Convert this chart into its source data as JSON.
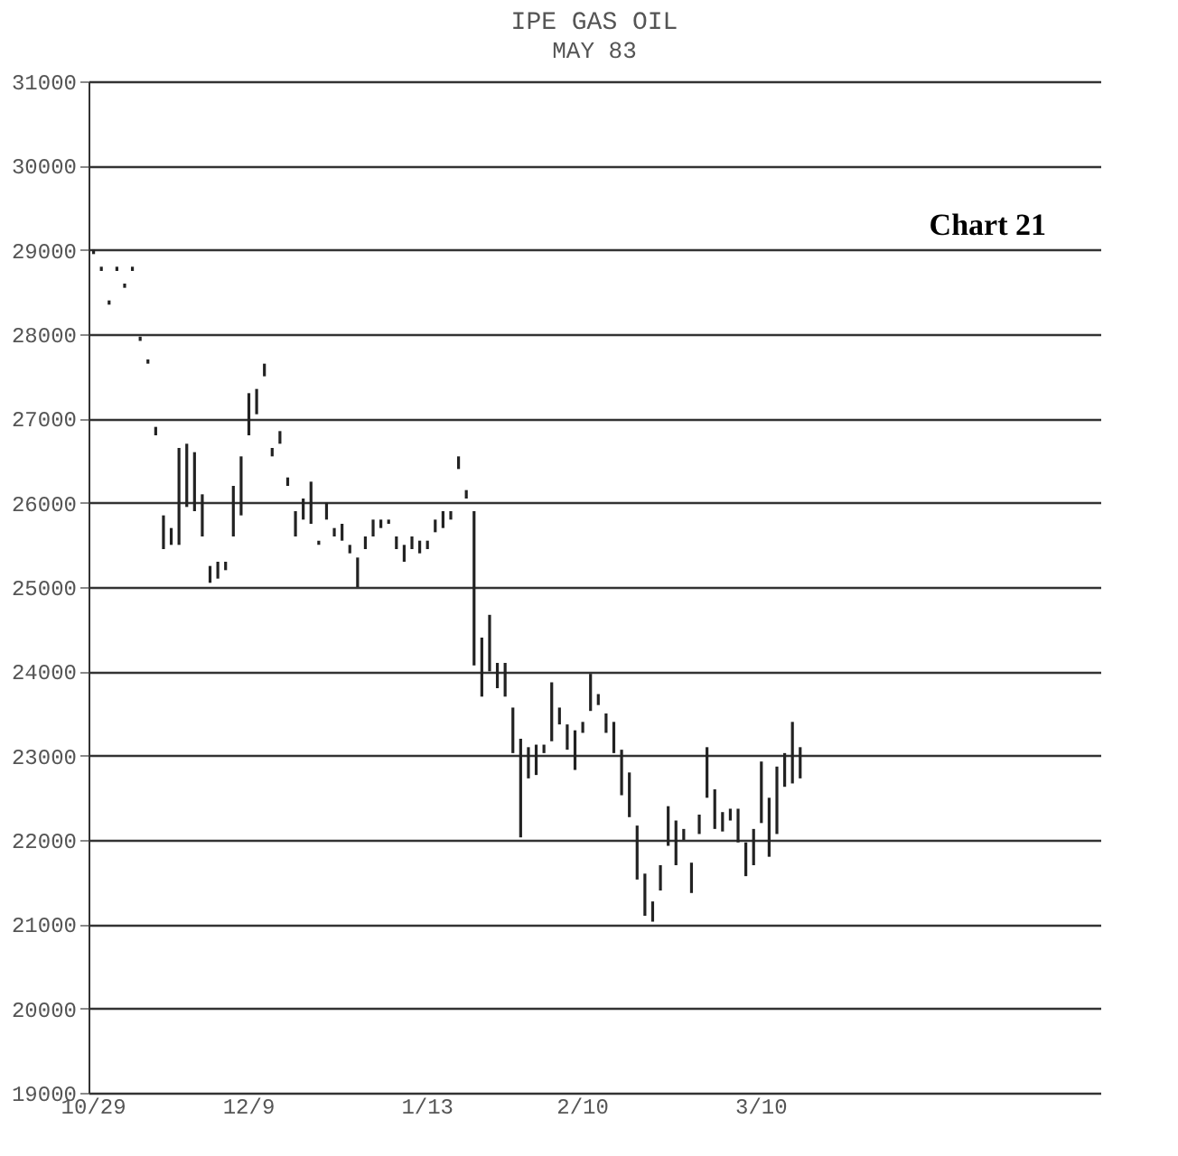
{
  "chart_data": {
    "type": "bar",
    "title": "IPE GAS OIL",
    "subtitle": "MAY 83",
    "annotations": [
      "Chart 21"
    ],
    "categories": [
      "10/29",
      null,
      null,
      null,
      null,
      null,
      null,
      null,
      null,
      null,
      null,
      null,
      null,
      null,
      null,
      null,
      null,
      null,
      null,
      null,
      "12/9",
      null,
      null,
      null,
      null,
      null,
      null,
      null,
      null,
      null,
      null,
      null,
      null,
      null,
      null,
      null,
      null,
      null,
      null,
      null,
      null,
      null,
      null,
      "1/13",
      null,
      null,
      null,
      null,
      null,
      null,
      null,
      null,
      null,
      null,
      null,
      null,
      null,
      null,
      null,
      null,
      null,
      null,
      null,
      "2/10",
      null,
      null,
      null,
      null,
      null,
      null,
      null,
      null,
      null,
      null,
      null,
      null,
      null,
      null,
      null,
      null,
      null,
      null,
      null,
      null,
      null,
      null,
      "3/10",
      null,
      null,
      null,
      null,
      null,
      null,
      null,
      null,
      null,
      null,
      null,
      null,
      null,
      null,
      null,
      null,
      null,
      null,
      null,
      null,
      null,
      null,
      null,
      null,
      null,
      null,
      null,
      null,
      null,
      null,
      null,
      null,
      null,
      null,
      null,
      null,
      null,
      null,
      null,
      null,
      null,
      null,
      null
    ],
    "base": [
      28950,
      28750,
      28350,
      28750,
      28550,
      28750,
      27920,
      27650,
      26800,
      25450,
      25500,
      25500,
      25950,
      25900,
      25600,
      25050,
      25100,
      25200,
      25600,
      25850,
      26800,
      27050,
      27500,
      26550,
      26700,
      26200,
      25600,
      25800,
      25750,
      25500,
      25800,
      25600,
      25550,
      25400,
      25000,
      25450,
      25600,
      25700,
      25750,
      25450,
      25300,
      25450,
      25400,
      25450,
      25650,
      25700,
      25800,
      26400,
      26050,
      24070,
      23700,
      24000,
      23800,
      23700,
      23030,
      22030,
      22730,
      22770,
      23030,
      23170,
      23370,
      23070,
      22830,
      23270,
      23530,
      23600,
      23270,
      23030,
      22530,
      22270,
      21530,
      21100,
      21030,
      21400,
      21930,
      21700,
      22000,
      21370,
      22070,
      22500,
      22130,
      22100,
      22230,
      21970,
      21570,
      21700,
      22200,
      21800,
      22070,
      22630,
      22670,
      22730,
      null,
      null,
      null,
      null,
      null,
      null,
      null,
      null,
      null,
      null,
      null,
      null,
      null,
      null,
      null,
      null,
      null,
      null,
      null,
      null,
      null,
      null,
      null,
      null,
      null,
      null,
      null,
      null,
      null,
      null,
      null,
      null,
      null,
      null,
      null,
      null,
      null,
      null
    ],
    "values": [
      50,
      50,
      50,
      50,
      50,
      50,
      50,
      50,
      100,
      400,
      200,
      1150,
      750,
      700,
      500,
      200,
      200,
      100,
      600,
      700,
      500,
      300,
      150,
      100,
      150,
      100,
      300,
      250,
      500,
      50,
      200,
      100,
      200,
      100,
      350,
      150,
      200,
      100,
      50,
      150,
      200,
      150,
      150,
      100,
      150,
      200,
      100,
      150,
      100,
      1830,
      700,
      670,
      300,
      400,
      540,
      1170,
      370,
      360,
      100,
      700,
      200,
      300,
      470,
      130,
      440,
      130,
      230,
      370,
      540,
      530,
      640,
      500,
      240,
      300,
      470,
      530,
      130,
      360,
      230,
      600,
      470,
      230,
      140,
      400,
      400,
      430,
      730,
      700,
      800,
      400,
      730,
      370,
      null,
      null,
      null,
      null,
      null,
      null,
      null,
      null,
      null,
      null,
      null,
      null,
      null,
      null,
      null,
      null,
      null,
      null,
      null,
      null,
      null,
      null,
      null,
      null,
      null,
      null,
      null,
      null,
      null,
      null,
      null,
      null,
      null,
      null,
      null,
      null,
      null,
      null
    ],
    "color": "#222222",
    "ylim": [
      19000,
      31000
    ],
    "yticks": [
      19000,
      20000,
      21000,
      22000,
      23000,
      24000,
      25000,
      26000,
      27000,
      28000,
      29000,
      30000,
      31000
    ],
    "grid": "y"
  }
}
